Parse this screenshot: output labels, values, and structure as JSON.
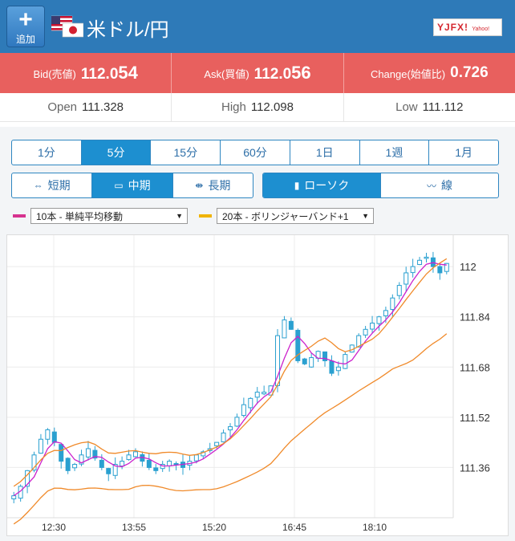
{
  "header": {
    "add_button": {
      "icon": "plus-icon",
      "label": "追加"
    },
    "pair_title": "米ドル/円",
    "logo_text": "YJFX!",
    "logo_sub": "Yahoo!"
  },
  "quotes": {
    "bid": {
      "label": "Bid(売値)",
      "value_prefix": "112.0",
      "value_suffix": "54"
    },
    "ask": {
      "label": "Ask(買値)",
      "value_prefix": "112.0",
      "value_suffix": "56"
    },
    "change": {
      "label": "Change(始値比)",
      "value": "0.726"
    }
  },
  "stats": {
    "open": {
      "label": "Open",
      "value": "111.328"
    },
    "high": {
      "label": "High",
      "value": "112.098"
    },
    "low": {
      "label": "Low",
      "value": "111.112"
    }
  },
  "timeframes": [
    "1分",
    "5分",
    "15分",
    "60分",
    "1日",
    "1週",
    "1月"
  ],
  "timeframe_active": 1,
  "range_options": [
    {
      "label": "短期",
      "icon": "short-range-icon"
    },
    {
      "label": "中期",
      "icon": "mid-range-icon"
    },
    {
      "label": "長期",
      "icon": "long-range-icon"
    }
  ],
  "range_active": 1,
  "chart_types": [
    {
      "label": "ローソク",
      "icon": "candlestick-icon"
    },
    {
      "label": "線",
      "icon": "line-chart-icon"
    }
  ],
  "chart_type_active": 0,
  "indicators": [
    {
      "label": "10本 - 単純平均移動",
      "color": "#d6338f"
    },
    {
      "label": "20本 - ボリンジャーバンド+1",
      "color": "#f0b400"
    }
  ],
  "colors": {
    "header_bg": "#2e7ab8",
    "quote_bg": "#e8605e",
    "candle": "#2aa0d0",
    "ma": "#cc22cc",
    "band": "#f08a2a"
  },
  "chart_data": {
    "type": "candlestick",
    "y_ticks": [
      "112",
      "111.84",
      "111.68",
      "111.52",
      "111.36"
    ],
    "x_ticks": [
      "12:30",
      "13:55",
      "15:20",
      "16:45",
      "18:10"
    ],
    "ylim": [
      111.2,
      112.1
    ],
    "grid": true,
    "close_path": [
      111.27,
      111.3,
      111.35,
      111.4,
      111.45,
      111.48,
      111.44,
      111.38,
      111.35,
      111.37,
      111.4,
      111.42,
      111.39,
      111.36,
      111.34,
      111.37,
      111.38,
      111.4,
      111.41,
      111.38,
      111.36,
      111.35,
      111.37,
      111.38,
      111.37,
      111.36,
      111.38,
      111.4,
      111.41,
      111.42,
      111.44,
      111.47,
      111.49,
      111.52,
      111.56,
      111.58,
      111.6,
      111.6,
      111.62,
      111.78,
      111.83,
      111.8,
      111.7,
      111.69,
      111.71,
      111.73,
      111.7,
      111.66,
      111.68,
      111.72,
      111.75,
      111.78,
      111.8,
      111.82,
      111.84,
      111.86,
      111.9,
      111.94,
      111.98,
      112.0,
      112.02,
      112.03,
      112.0,
      111.98,
      112.01
    ]
  }
}
